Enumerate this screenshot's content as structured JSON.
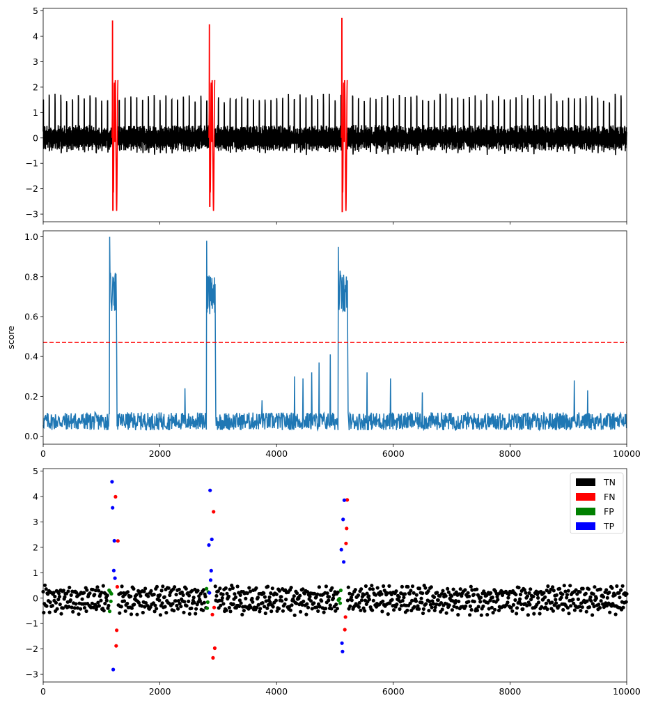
{
  "chart_data": [
    {
      "type": "line",
      "panel": "signal",
      "title": "",
      "xlabel": "",
      "ylabel": "",
      "xlim": [
        0,
        10000
      ],
      "ylim": [
        -3.3,
        5.1
      ],
      "yticks": [
        "−3",
        "−2",
        "−1",
        "0",
        "1",
        "2",
        "3",
        "4",
        "5"
      ],
      "x_ticklabels_shown": false,
      "series": [
        {
          "color": "#000000",
          "description_values": {
            "baseline_band": [
              -1.0,
              0.6
            ],
            "beat_spacing": 100,
            "peak_range": [
              1.8,
              2.8
            ]
          }
        },
        {
          "color": "#ff0000",
          "anomaly_segments": [
            {
              "x": [
                1180,
                1280
              ],
              "min": -2.85,
              "max": 4.6
            },
            {
              "x": [
                2840,
                2940
              ],
              "min": -2.7,
              "max": 4.45
            },
            {
              "x": [
                5110,
                5210
              ],
              "min": -2.9,
              "max": 4.7
            }
          ]
        }
      ]
    },
    {
      "type": "line",
      "panel": "score",
      "title": "",
      "xlabel": "",
      "ylabel": "score",
      "xlim": [
        0,
        10000
      ],
      "ylim": [
        -0.04,
        1.03
      ],
      "yticks": [
        "0.0",
        "0.2",
        "0.4",
        "0.6",
        "0.8",
        "1.0"
      ],
      "xticks": [
        "0",
        "2000",
        "4000",
        "6000",
        "8000",
        "10000"
      ],
      "threshold": {
        "value": 0.47,
        "color": "#ff0000",
        "style": "dashed"
      },
      "series": [
        {
          "color": "#1f77b4",
          "baseline_range": [
            0.03,
            0.12
          ],
          "spikes": [
            {
              "x": 1140,
              "value": 1.0
            },
            {
              "x": 1150,
              "value": 0.82
            },
            {
              "x": 1200,
              "value": 0.79
            },
            {
              "x": 1260,
              "value": 0.4
            },
            {
              "x": 2800,
              "value": 0.98
            },
            {
              "x": 2830,
              "value": 0.8
            },
            {
              "x": 2880,
              "value": 0.77
            },
            {
              "x": 2950,
              "value": 0.4
            },
            {
              "x": 2430,
              "value": 0.24
            },
            {
              "x": 3750,
              "value": 0.18
            },
            {
              "x": 4310,
              "value": 0.3
            },
            {
              "x": 4450,
              "value": 0.29
            },
            {
              "x": 4600,
              "value": 0.32
            },
            {
              "x": 4730,
              "value": 0.37
            },
            {
              "x": 4920,
              "value": 0.41
            },
            {
              "x": 5060,
              "value": 0.95
            },
            {
              "x": 5090,
              "value": 0.83
            },
            {
              "x": 5150,
              "value": 0.81
            },
            {
              "x": 5220,
              "value": 0.42
            },
            {
              "x": 5550,
              "value": 0.32
            },
            {
              "x": 5950,
              "value": 0.29
            },
            {
              "x": 6500,
              "value": 0.22
            },
            {
              "x": 9100,
              "value": 0.28
            },
            {
              "x": 9330,
              "value": 0.23
            }
          ]
        }
      ]
    },
    {
      "type": "scatter",
      "panel": "classification",
      "title": "",
      "xlabel": "",
      "ylabel": "",
      "xlim": [
        0,
        10000
      ],
      "ylim": [
        -3.3,
        5.1
      ],
      "yticks": [
        "−3",
        "−2",
        "−1",
        "0",
        "1",
        "2",
        "3",
        "4",
        "5"
      ],
      "xticks": [
        "0",
        "2000",
        "4000",
        "6000",
        "8000",
        "10000"
      ],
      "legend": {
        "placement": "top-right",
        "entries": [
          {
            "label": "TN",
            "color": "#000000"
          },
          {
            "label": "FN",
            "color": "#ff0000"
          },
          {
            "label": "FP",
            "color": "#008000"
          },
          {
            "label": "TP",
            "color": "#0000ff"
          }
        ]
      },
      "groups": [
        {
          "label": "TN",
          "color": "#000000",
          "range": [
            0,
            10000
          ]
        },
        {
          "label": "FP",
          "color": "#008000",
          "x": [
            [
              1130,
              1180
            ],
            [
              2800,
              2840
            ],
            [
              5060,
              5110
            ]
          ]
        },
        {
          "label": "TP",
          "color": "#0000ff",
          "x": [
            [
              1180,
              1240
            ],
            [
              2840,
              2900
            ],
            [
              5110,
              5170
            ]
          ]
        },
        {
          "label": "FN",
          "color": "#ff0000",
          "x": [
            [
              1240,
              1290
            ],
            [
              2900,
              2950
            ],
            [
              5170,
              5220
            ]
          ]
        }
      ]
    }
  ]
}
